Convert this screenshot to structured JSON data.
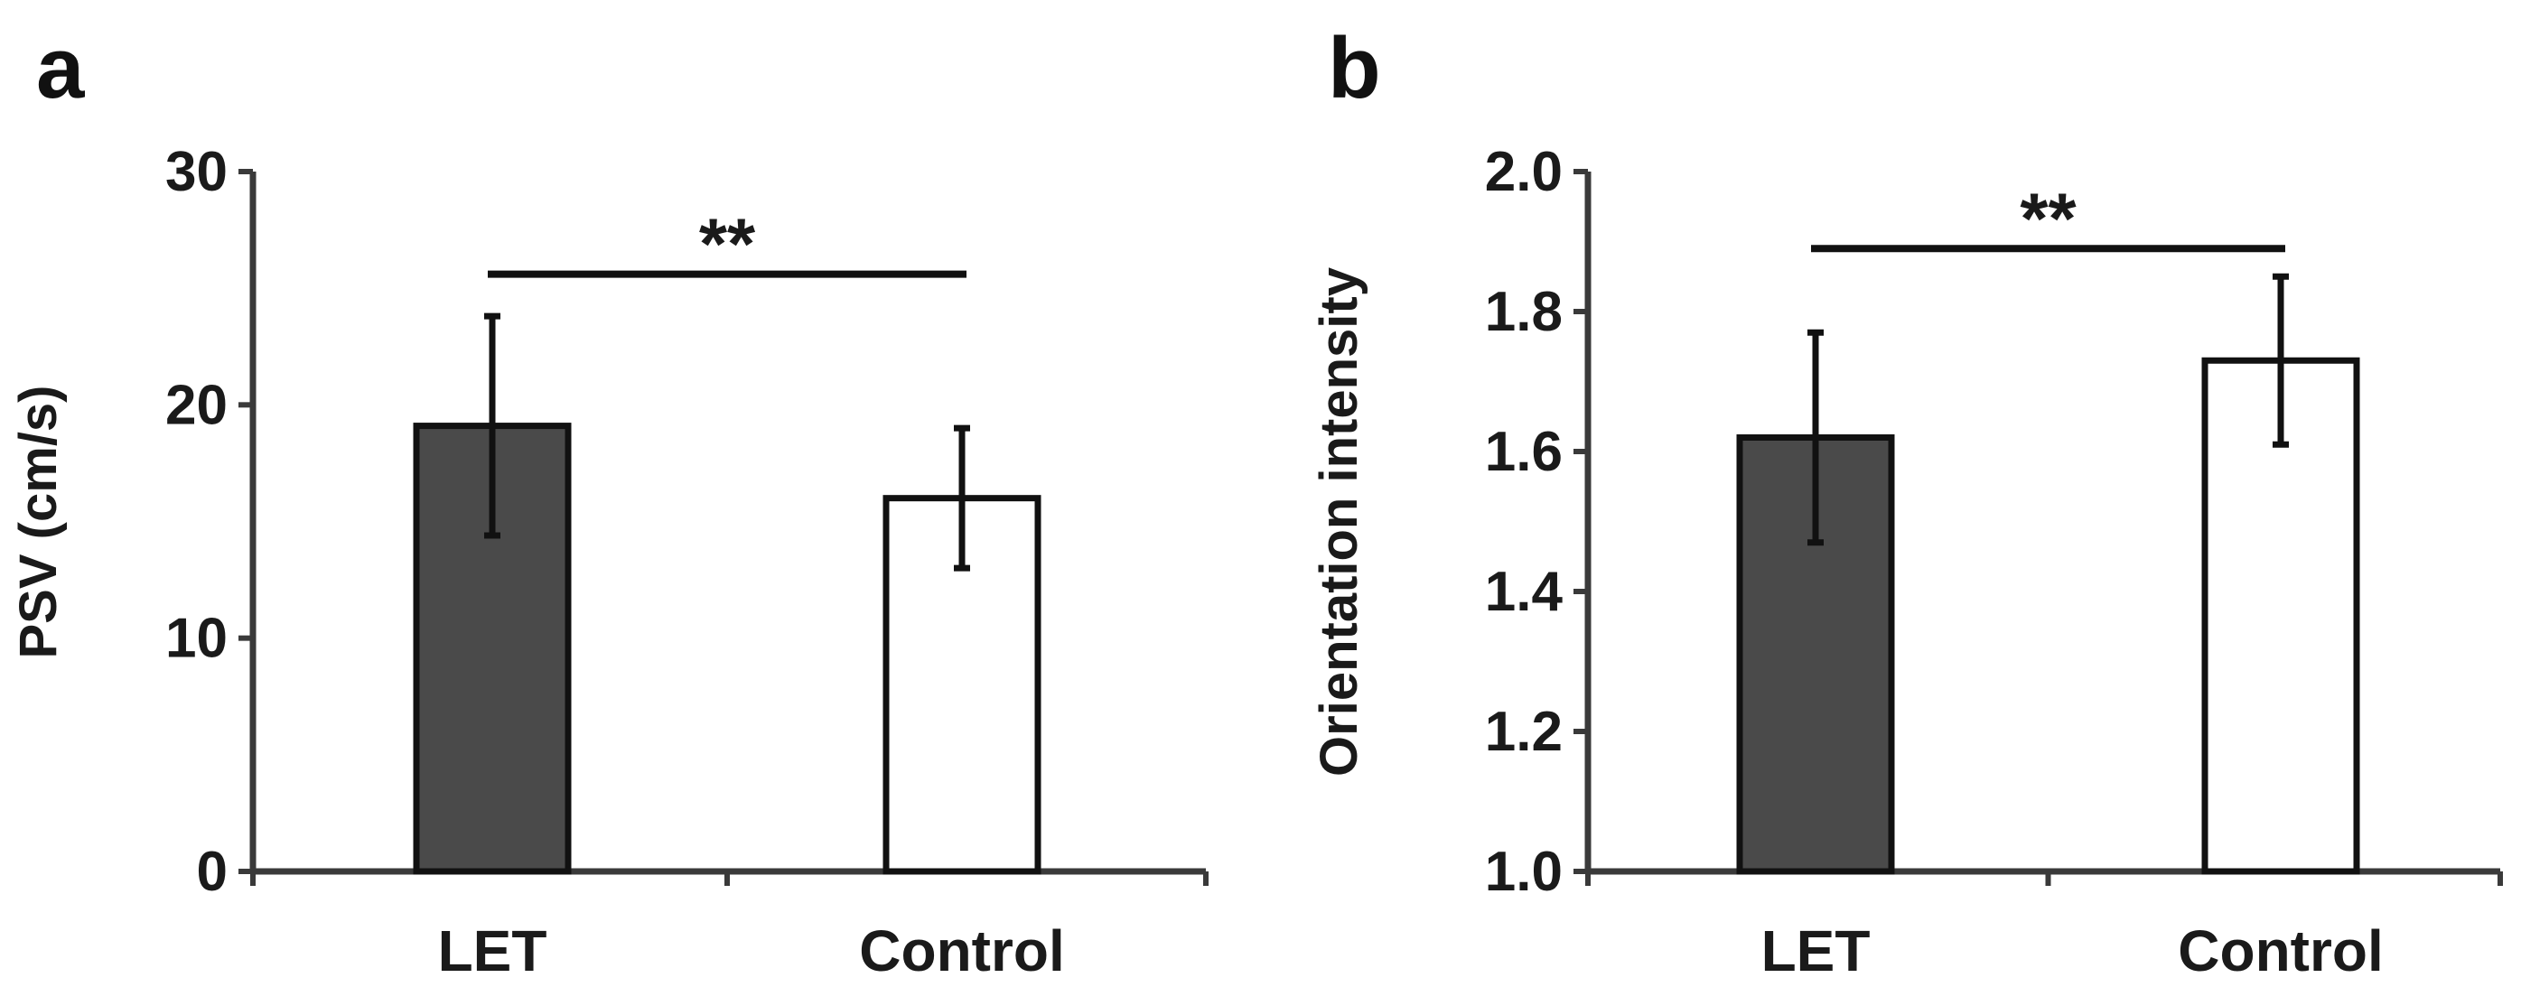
{
  "chart_data": [
    {
      "panel_label": "a",
      "type": "bar",
      "categories": [
        "LET",
        "Control"
      ],
      "values": [
        19.1,
        16.0
      ],
      "error": [
        4.7,
        3.0
      ],
      "ylabel": "PSV (cm/s)",
      "xlabel": "",
      "ylim": [
        0,
        30
      ],
      "yticks": [
        "0",
        "10",
        "20",
        "30"
      ],
      "bar_colors": [
        "#4a4a4a",
        "#ffffff"
      ],
      "significance": {
        "label": "**",
        "level": 25.6
      }
    },
    {
      "panel_label": "b",
      "type": "bar",
      "categories": [
        "LET",
        "Control"
      ],
      "values": [
        1.62,
        1.73
      ],
      "error": [
        0.15,
        0.12
      ],
      "ylabel": "Orientation intensity",
      "xlabel": "",
      "ylim": [
        1.0,
        2.0
      ],
      "yticks": [
        "1.0",
        "1.2",
        "1.4",
        "1.6",
        "1.8",
        "2.0"
      ],
      "bar_colors": [
        "#4a4a4a",
        "#ffffff"
      ],
      "significance": {
        "label": "**",
        "level": 1.89
      }
    }
  ]
}
